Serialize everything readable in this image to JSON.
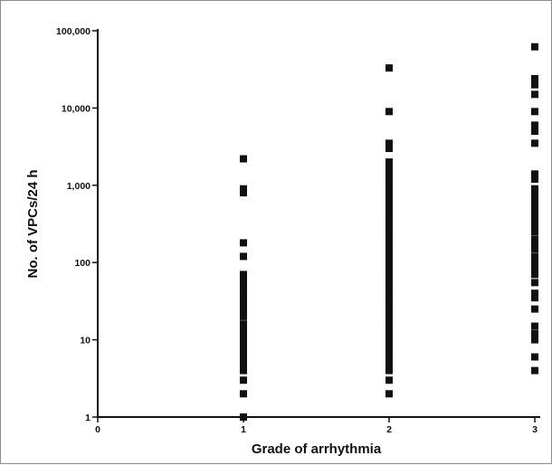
{
  "chart_data": {
    "type": "scatter",
    "title": "",
    "xlabel": "Grade of arrhythmia",
    "ylabel": "No. of VPCs/24 h",
    "xlim": [
      0,
      3
    ],
    "ylim": [
      1,
      100000
    ],
    "y_scale": "log",
    "grid": false,
    "x_ticks": [
      "0",
      "1",
      "2",
      "3"
    ],
    "y_ticks": [
      "1",
      "10",
      "100",
      "1,000",
      "10,000",
      "100,000"
    ],
    "marker": "square",
    "marker_color": "#111111",
    "series": [
      {
        "x": 1,
        "values": [
          2200,
          900,
          800,
          180,
          120,
          70,
          60,
          50,
          45,
          38,
          33,
          28,
          24,
          20,
          16,
          13,
          11,
          9,
          8,
          7,
          6,
          5,
          4.5,
          4,
          3,
          2,
          1
        ]
      },
      {
        "x": 2,
        "values": [
          33000,
          9000,
          3500,
          3000,
          2000,
          1700,
          1400,
          1200,
          1000,
          900,
          800,
          700,
          600,
          500,
          450,
          400,
          350,
          300,
          250,
          220,
          200,
          170,
          150,
          130,
          120,
          100,
          90,
          80,
          70,
          60,
          55,
          50,
          45,
          40,
          35,
          30,
          28,
          25,
          22,
          20,
          18,
          16,
          14,
          12,
          11,
          10,
          9,
          8,
          7,
          6,
          5.5,
          5,
          4.5,
          4,
          3,
          2
        ]
      },
      {
        "x": 3,
        "values": [
          62000,
          24000,
          20000,
          15000,
          9000,
          6000,
          5000,
          3500,
          1400,
          1200,
          900,
          750,
          650,
          550,
          480,
          400,
          350,
          300,
          250,
          200,
          180,
          150,
          120,
          100,
          85,
          70,
          55,
          40,
          35,
          25,
          15,
          12,
          10,
          6,
          4
        ]
      }
    ]
  }
}
